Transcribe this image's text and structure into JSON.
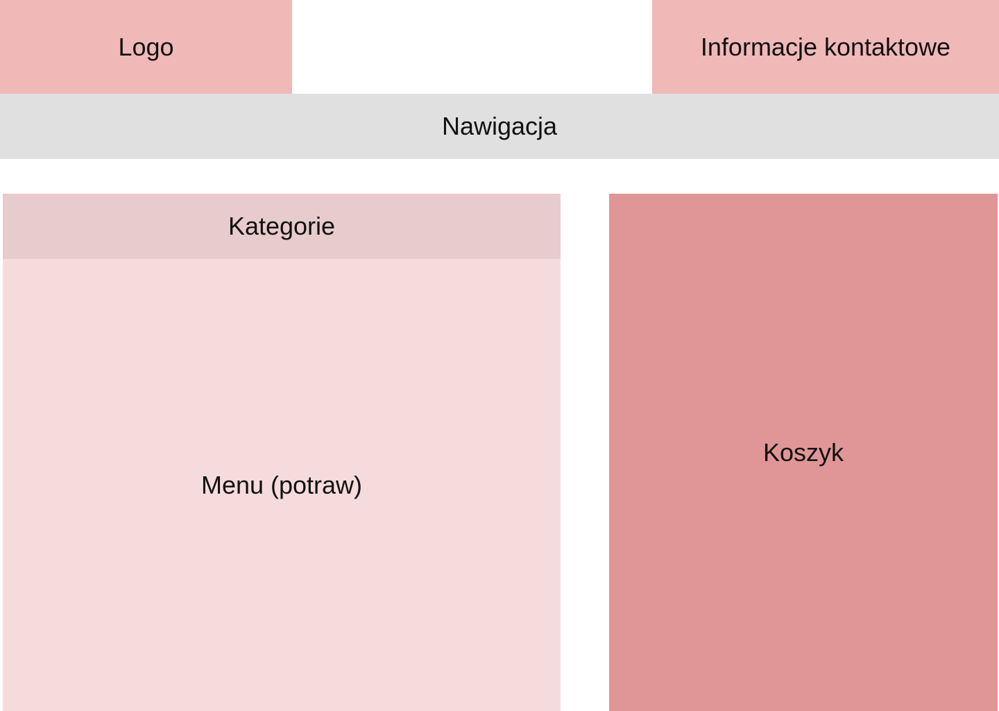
{
  "header": {
    "logo_label": "Logo",
    "contact_label": "Informacje kontaktowe"
  },
  "nav": {
    "label": "Nawigacja"
  },
  "main": {
    "categories_label": "Kategorie",
    "menu_label": "Menu (potraw)"
  },
  "sidebar": {
    "cart_label": "Koszyk"
  },
  "colors": {
    "logo": "#f1b8b8",
    "contact": "#f1b8b8",
    "nav": "#e0e0e0",
    "categories": "#e8cbcd",
    "menu": "#f6dbdd",
    "cart": "#e09696"
  }
}
